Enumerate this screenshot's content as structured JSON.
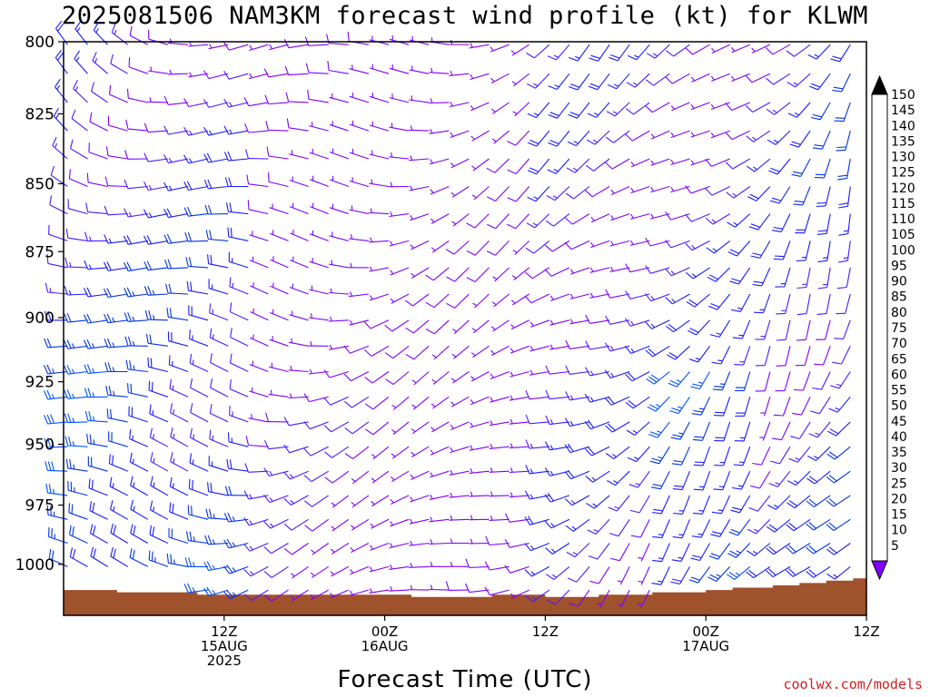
{
  "title": "2025081506 NAM3KM forecast wind profile (kt) for KLWM",
  "credit": "coolwx.com/models",
  "chart_data": {
    "type": "wind-barb profile",
    "title": "2025081506 NAM3KM forecast wind profile (kt) for KLWM",
    "xlabel": "Forecast Time (UTC)",
    "ylabel": "",
    "y_axis": {
      "units": "hPa",
      "range": [
        1022,
        800
      ],
      "ticks": [
        800,
        825,
        850,
        875,
        900,
        925,
        950,
        975,
        1000
      ]
    },
    "x_axis": {
      "range_hours": [
        -6,
        54
      ],
      "ticks": [
        {
          "hour": 6,
          "labels": [
            "12Z",
            "15AUG",
            "2025"
          ]
        },
        {
          "hour": 18,
          "labels": [
            "00Z",
            "16AUG"
          ]
        },
        {
          "hour": 30,
          "labels": [
            "12Z"
          ]
        },
        {
          "hour": 42,
          "labels": [
            "00Z",
            "17AUG"
          ]
        },
        {
          "hour": 54,
          "labels": [
            "12Z"
          ]
        }
      ]
    },
    "grid": false,
    "colorbar": {
      "label_units": "kt",
      "levels": [
        5,
        10,
        15,
        20,
        25,
        30,
        35,
        40,
        45,
        50,
        55,
        60,
        65,
        70,
        75,
        80,
        85,
        90,
        95,
        100,
        105,
        110,
        115,
        120,
        125,
        130,
        135,
        140,
        145,
        150
      ],
      "colors": [
        "#7f00ff",
        "#4a1aff",
        "#1a1aff",
        "#0033e6",
        "#0050ff",
        "#1e70ff",
        "#2a90ff",
        "#1aaeff",
        "#18c8e6",
        "#0fdcc8",
        "#10e8a0",
        "#10ff60",
        "#30e030",
        "#60f020",
        "#90ff00",
        "#c8ff00",
        "#f0ff00",
        "#ffe000",
        "#ffc000",
        "#ffa000",
        "#ff8800",
        "#ff7000",
        "#ff4800",
        "#ff2400",
        "#ff0000",
        "#f00030",
        "#f00060",
        "#ff0090",
        "#ff00c0",
        "#ff00ff"
      ],
      "under_color": "#7f00ff",
      "over_color": "#000000"
    },
    "terrain": {
      "color": "#a0522d",
      "surface_pressure_hpa": [
        1011,
        1011,
        1012,
        1012,
        1012,
        1013,
        1013,
        1013,
        1013,
        1013,
        1013,
        1013,
        1013,
        1013,
        1014,
        1014,
        1014,
        1013,
        1013,
        1014,
        1014,
        1013,
        1013,
        1012,
        1012,
        1011,
        1010,
        1010,
        1010,
        1009,
        1009,
        1008,
        1008,
        1007,
        1007,
        1006,
        1006,
        1005
      ],
      "surface_x_hours": [
        -6,
        -4,
        -2,
        0,
        2,
        4,
        6,
        8,
        10,
        12,
        14,
        16,
        18,
        19,
        20,
        22,
        24,
        26,
        28,
        30,
        32,
        34,
        36,
        38,
        40,
        42,
        44,
        45,
        46,
        47,
        48,
        49,
        50,
        51,
        52,
        53,
        54,
        54.5
      ]
    },
    "wind_barbs": {
      "time_step_hours": 1.5,
      "pressure_step_hpa": 10,
      "note": "barbs drawn per time/level; speeds 5-40 kt, directions generally W-NW early shifting to SW-S late"
    }
  }
}
